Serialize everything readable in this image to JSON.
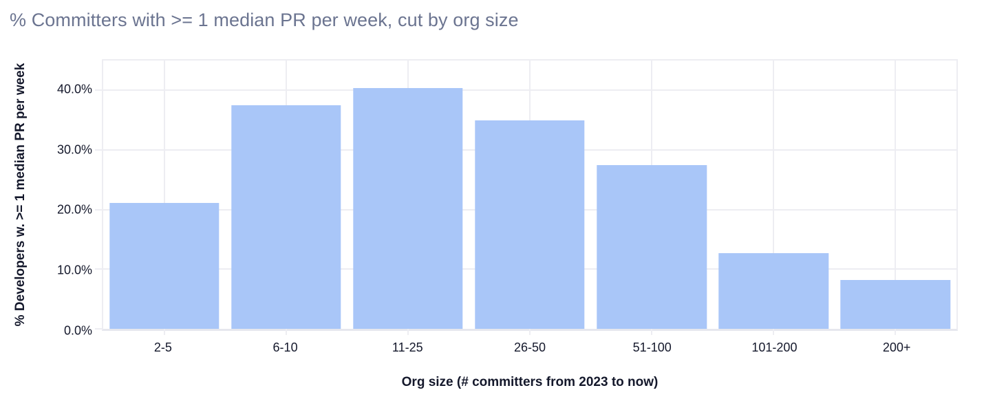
{
  "chart": {
    "title": "% Committers with >= 1 median PR per week, cut by org size"
  },
  "chart_data": {
    "type": "bar",
    "title": "% Committers with >= 1 median PR per week, cut by org size",
    "categories": [
      "2-5",
      "6-10",
      "11-25",
      "26-50",
      "51-100",
      "101-200",
      "200+"
    ],
    "values": [
      21.1,
      37.5,
      40.4,
      35.0,
      27.5,
      12.7,
      8.2
    ],
    "xlabel": "Org size (# committers from 2023 to now)",
    "ylabel": "% Developers w. >= 1 median PR per week",
    "ylim": [
      0,
      45
    ],
    "ytick_values": [
      0,
      10,
      20,
      30,
      40
    ],
    "ytick_labels": [
      "0.0%",
      "10.0%",
      "20.0%",
      "30.0%",
      "40.0%"
    ],
    "grid": true,
    "legend_position": "none",
    "bar_width_ratio": 0.9,
    "colors": {
      "bar_fill": "#a9c6f8",
      "gridline": "#ededf2",
      "baseline": "#e6e7ee",
      "title_text": "#6b7490",
      "axis_text": "#14182b",
      "background": "#ffffff"
    }
  }
}
